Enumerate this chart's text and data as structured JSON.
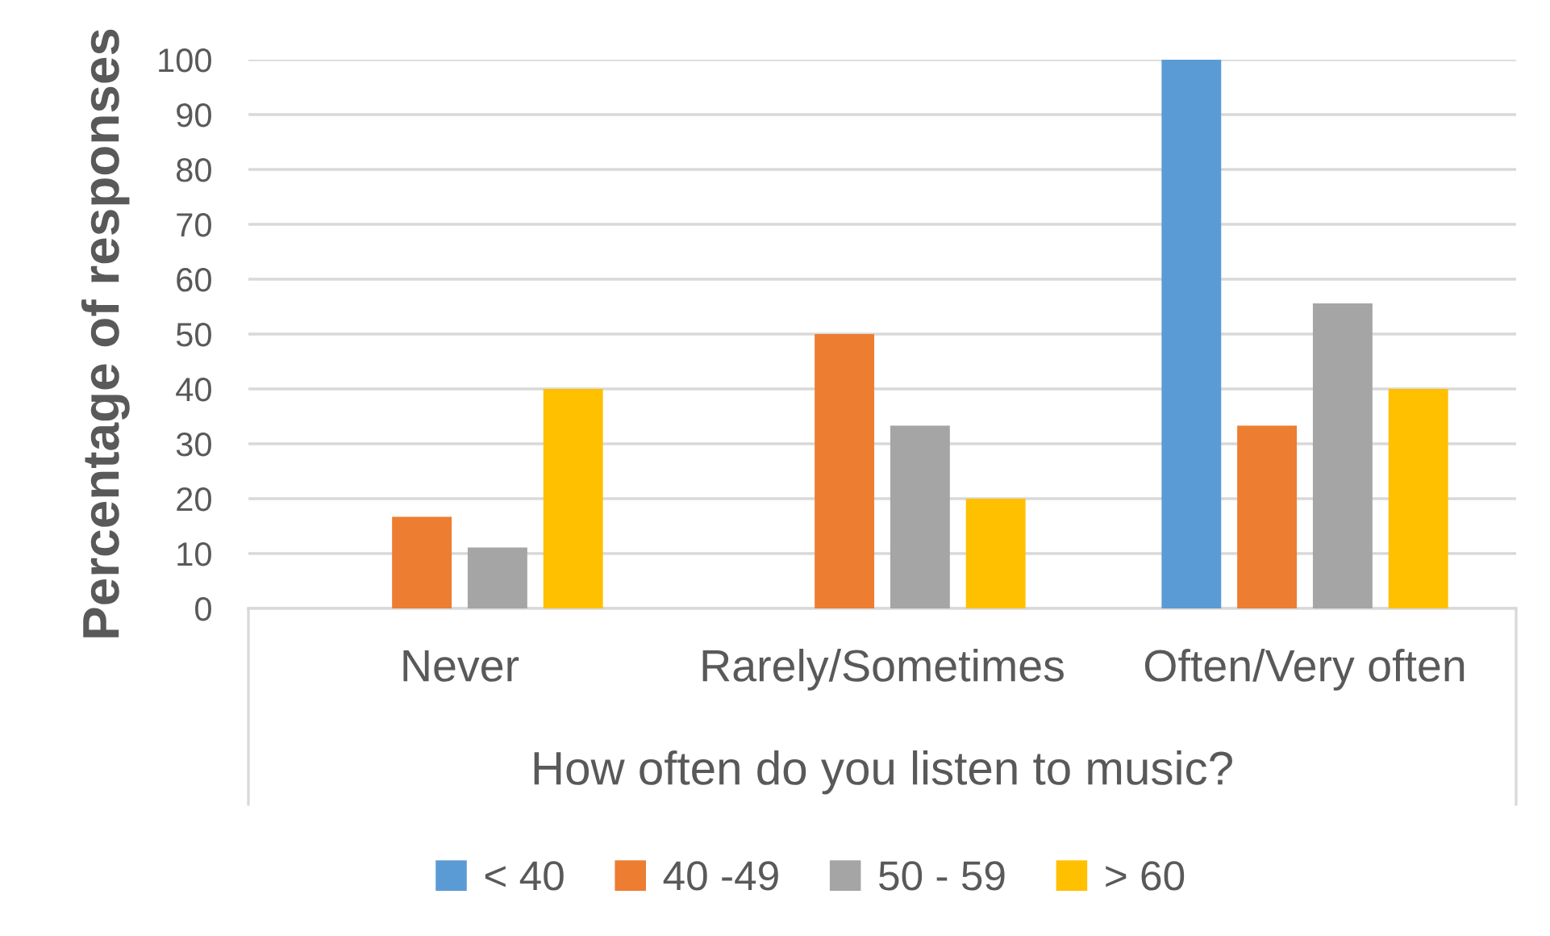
{
  "chart_data": {
    "type": "bar",
    "xlabel": "How often do you listen to music?",
    "ylabel": "Percentage of responses",
    "categories": [
      "Never",
      "Rarely/Sometimes",
      "Often/Very often"
    ],
    "series": [
      {
        "name": "< 40",
        "color": "#5b9bd5",
        "values": [
          0,
          0,
          100
        ]
      },
      {
        "name": "40 -49",
        "color": "#ed7d31",
        "values": [
          16.7,
          50,
          33.3
        ]
      },
      {
        "name": "50 - 59",
        "color": "#a5a5a5",
        "values": [
          11.1,
          33.3,
          55.6
        ]
      },
      {
        "name": "> 60",
        "color": "#ffc000",
        "values": [
          40,
          20,
          40
        ]
      }
    ],
    "ylim": [
      0,
      100
    ],
    "yticks": [
      0,
      10,
      20,
      30,
      40,
      50,
      60,
      70,
      80,
      90,
      100
    ],
    "grid": "y",
    "legend": "bottom"
  }
}
